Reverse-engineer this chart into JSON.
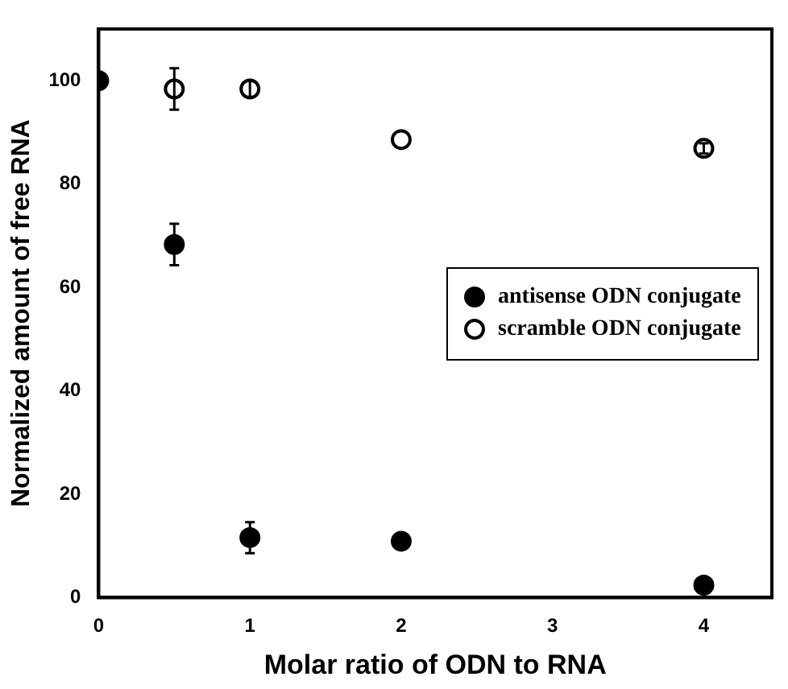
{
  "chart_data": {
    "type": "scatter",
    "xlabel": "Molar ratio of ODN to RNA",
    "ylabel": "Normalized amount of free RNA",
    "xlim": [
      0,
      4.45
    ],
    "xticks": [
      0,
      1,
      2,
      3,
      4
    ],
    "ylim": [
      0,
      110
    ],
    "yticks": [
      0,
      20,
      40,
      60,
      80,
      100
    ],
    "grid": false,
    "legend": "right",
    "marker": "circle",
    "series": [
      {
        "name": "antisense ODN conjugate",
        "color": "#000000",
        "x": [
          0,
          0.5,
          1,
          2,
          4
        ],
        "values": [
          100,
          68.3,
          11.6,
          10.9,
          2.4
        ],
        "errors": [
          null,
          4,
          3,
          null,
          null
        ]
      },
      {
        "name": "scramble ODN conjugate",
        "color": "#ffffff",
        "x": [
          0.5,
          1,
          2,
          4
        ],
        "values": [
          98.4,
          98.4,
          88.6,
          86.9
        ],
        "errors": [
          4,
          1.5,
          null,
          1
        ]
      }
    ]
  }
}
